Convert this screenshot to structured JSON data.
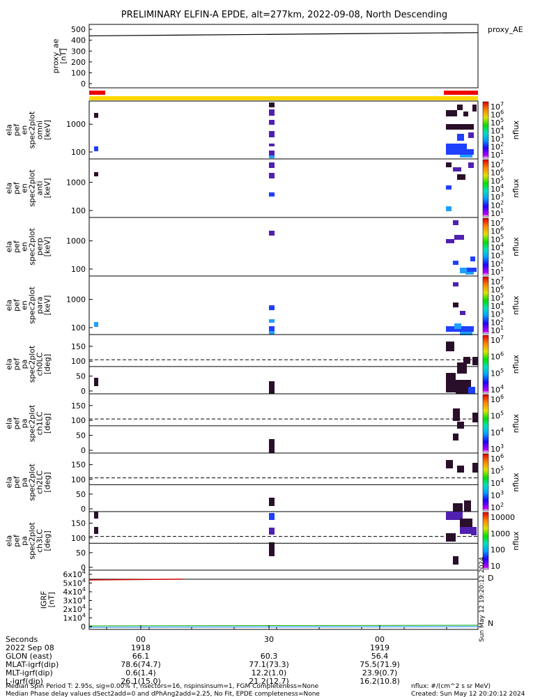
{
  "chart_data": {
    "type": "spectrogram-stack",
    "title": "PRELIMINARY ELFIN-A EPDE, alt=277km, 2022-09-08, North Descending",
    "top_panel": {
      "ylabel_lines": [
        "proxy_ae",
        "[nT]"
      ],
      "yticks": [
        "500",
        "400",
        "300",
        "200",
        "100",
        "0"
      ],
      "ytick_values": [
        500,
        400,
        300,
        200,
        100,
        0
      ],
      "ylim": [
        0,
        520
      ],
      "legend": "proxy_AE",
      "series": [
        {
          "name": "proxy_AE",
          "x": [
            0,
            1
          ],
          "y": [
            440,
            470
          ]
        }
      ]
    },
    "spec_panels": [
      {
        "ylabel_lines": [
          "ela",
          "pef",
          "en",
          "spec2plot",
          "omni",
          "[keV]"
        ],
        "yticks": [
          "1000",
          "100"
        ],
        "cbar_label": "nflux",
        "cbar_ticks": [
          "10^7",
          "10^6",
          "10^5",
          "10^4",
          "10^3",
          "10^2",
          "10^1"
        ],
        "cbar_max_exp": 7,
        "cbar_min_exp": 1
      },
      {
        "ylabel_lines": [
          "ela",
          "pef",
          "en",
          "spec2plot",
          "anti",
          "[keV]"
        ],
        "yticks": [
          "1000",
          "100"
        ],
        "cbar_label": "nflux",
        "cbar_ticks": [
          "10^7",
          "10^6",
          "10^5",
          "10^4",
          "10^3",
          "10^2",
          "10^1"
        ],
        "cbar_max_exp": 7,
        "cbar_min_exp": 1
      },
      {
        "ylabel_lines": [
          "ela",
          "pef",
          "en",
          "spec2plot",
          "perp",
          "[keV]"
        ],
        "yticks": [
          "1000",
          "100"
        ],
        "cbar_label": "nflux",
        "cbar_ticks": [
          "10^7",
          "10^6",
          "10^5",
          "10^4",
          "10^3",
          "10^2",
          "10^1"
        ],
        "cbar_max_exp": 7,
        "cbar_min_exp": 1
      },
      {
        "ylabel_lines": [
          "ela",
          "pef",
          "en",
          "spec2plot",
          "para",
          "[keV]"
        ],
        "yticks": [
          "1000",
          "100"
        ],
        "cbar_label": "nflux",
        "cbar_ticks": [
          "10^7",
          "10^6",
          "10^5",
          "10^4",
          "10^3",
          "10^2",
          "10^1"
        ],
        "cbar_max_exp": 7,
        "cbar_min_exp": 1
      },
      {
        "ylabel_lines": [
          "ela",
          "pef",
          "pa",
          "spec2plot",
          "ch0LC",
          "[deg]"
        ],
        "yticks": [
          "150",
          "100",
          "50",
          "0"
        ],
        "cbar_label": "nflux",
        "cbar_ticks": [
          "10^7",
          "10^6",
          "10^5",
          "10^4"
        ],
        "cbar_max_exp": 7,
        "cbar_min_exp": 4
      },
      {
        "ylabel_lines": [
          "ela",
          "pef",
          "pa",
          "spec2plot",
          "ch1LC",
          "[deg]"
        ],
        "yticks": [
          "150",
          "100",
          "50",
          "0"
        ],
        "cbar_label": "nflux",
        "cbar_ticks": [
          "10^6",
          "10^5",
          "10^4",
          "10^3"
        ],
        "cbar_max_exp": 6,
        "cbar_min_exp": 3
      },
      {
        "ylabel_lines": [
          "ela",
          "pef",
          "pa",
          "spec2plot",
          "ch2LC",
          "[deg]"
        ],
        "yticks": [
          "150",
          "100",
          "50",
          "0"
        ],
        "cbar_label": "nflux",
        "cbar_ticks": [
          "10^6",
          "10^5",
          "10^4",
          "10^3",
          "10^2"
        ],
        "cbar_max_exp": 6,
        "cbar_min_exp": 2
      },
      {
        "ylabel_lines": [
          "ela",
          "pef",
          "pa",
          "spec2plot",
          "ch3LC",
          "[deg]"
        ],
        "yticks": [
          "150",
          "100",
          "50",
          "0"
        ],
        "cbar_label": "nflux",
        "cbar_ticks": [
          "10000",
          "1000",
          "100",
          "10"
        ],
        "cbar_max_exp": 4,
        "cbar_min_exp": 1
      }
    ],
    "igrf_panel": {
      "ylabel_lines": [
        "IGRF",
        "[nT]"
      ],
      "yticks": [
        "6x10^4",
        "5x10^4",
        "4x10^4",
        "3x10^4",
        "2x10^4",
        "1x10^4",
        "0"
      ],
      "legend_D": "D",
      "legend_N": "N",
      "stamp": "Sun May 12 19:20:12 2024"
    },
    "time_axis": {
      "row_labels": [
        "Seconds",
        "2022 Sep 08",
        "GLON (east)",
        "MLAT-igrf(dip)",
        "MLT-igrf(dip)",
        "L-igrf(dip)"
      ],
      "columns": [
        [
          "00",
          "1918",
          "66.1",
          "78.6(74.7)",
          "0.6(1.4)",
          "26.1(15.0)"
        ],
        [
          "30",
          "",
          "60.3",
          "77.1(73.3)",
          "12.2(1.0)",
          "21.2(12.7)"
        ],
        [
          "00",
          "1919",
          "56.4",
          "75.5(71.9)",
          "23.9(0.7)",
          "16.2(10.8)"
        ]
      ]
    },
    "footer": {
      "line1_left": "Median Spin Period T: 2.95s, sig=0.00% T, nsectors=16, nspinsinsum=1, FGM Completeness=None",
      "line2_left": "Median Phase delay values dSect2add=0 and dPhAng2add=2.25, No Fit, EPDE completeness=None",
      "line1_right": "nflux: #/(cm^2 s sr MeV)",
      "line2_right": "Created: Sun May 12 20:20:12 2024"
    },
    "colors": {
      "bar_yellow": "#ffd700",
      "bar_red": "#ee0000",
      "trace": "#000000",
      "D_red": "#cc0000",
      "N_green": "#00aa00"
    }
  }
}
